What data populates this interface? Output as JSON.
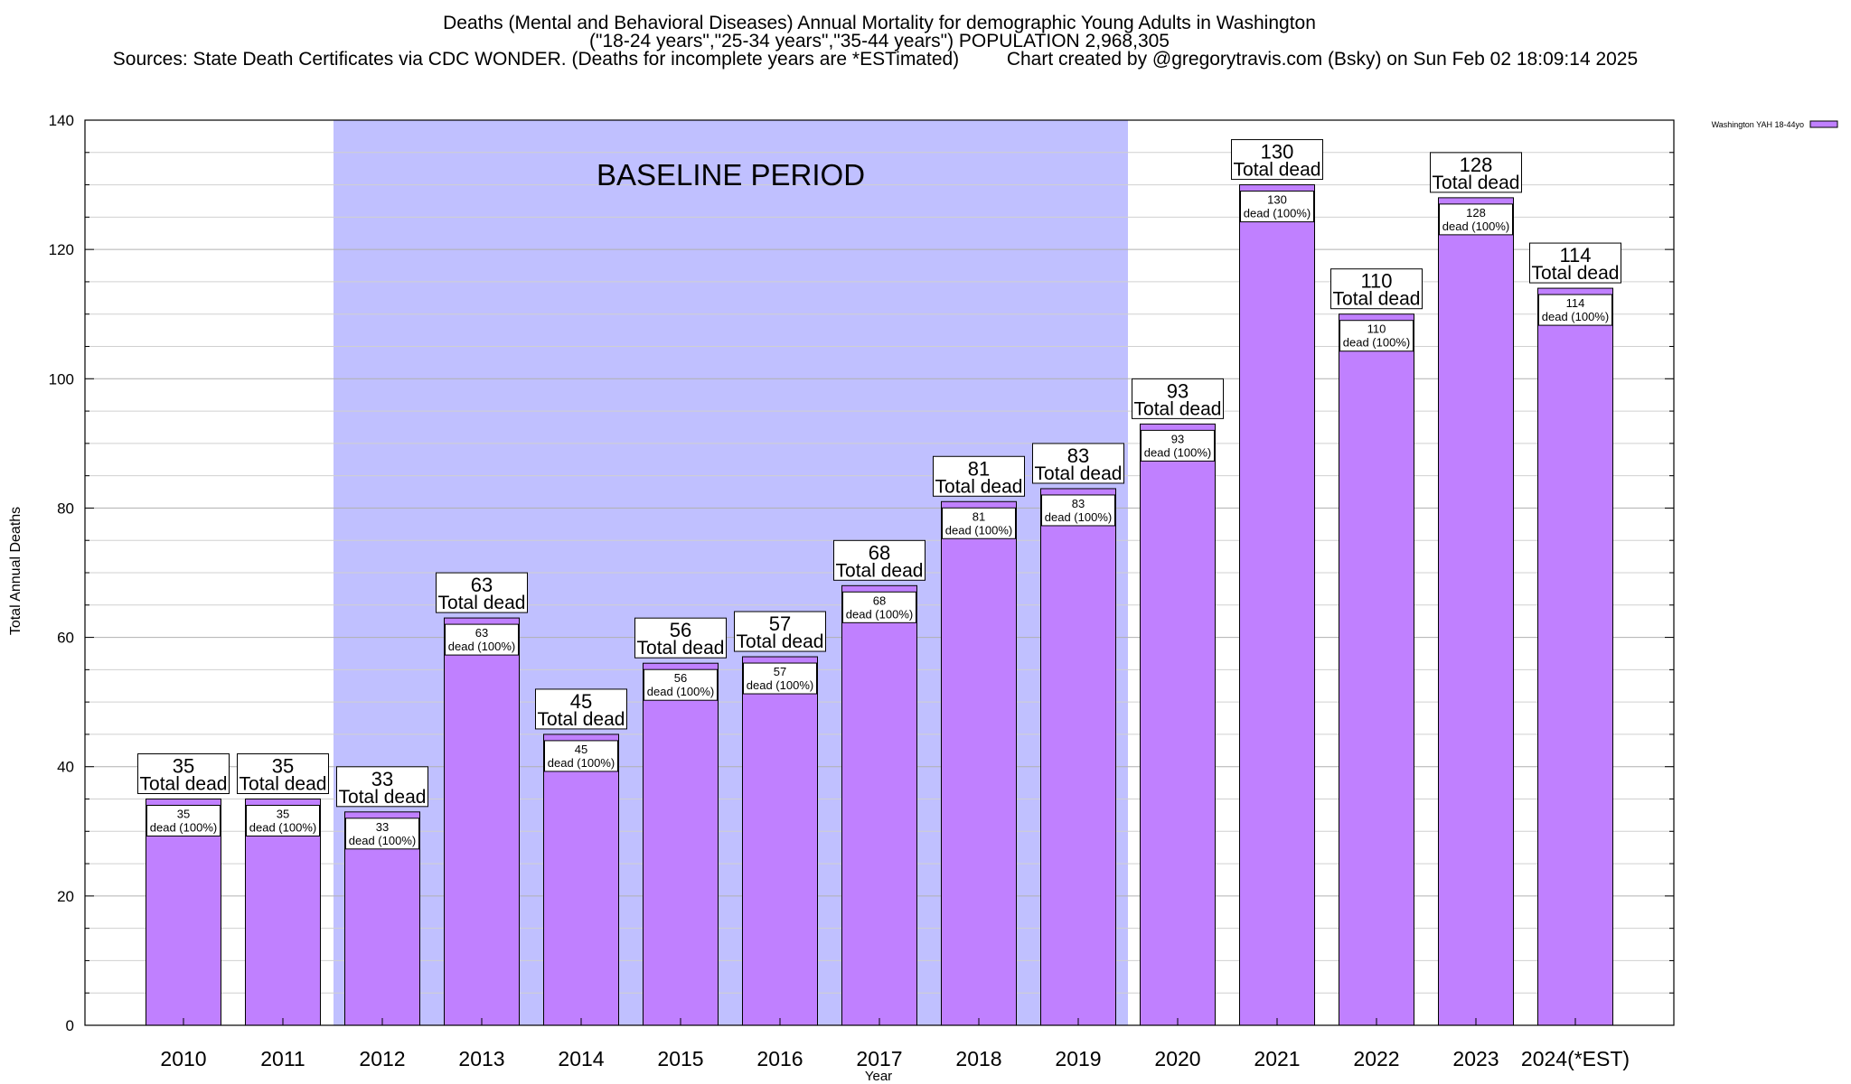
{
  "chart_data": {
    "type": "bar",
    "title": "Deaths (Mental and Behavioral Diseases) Annual Mortality for demographic Young Adults in Washington",
    "subtitle": "(\"18-24 years\",\"25-34 years\",\"35-44 years\") POPULATION 2,968,305",
    "sources": "Sources: State Death Certificates via CDC WONDER. (Deaths for incomplete years are *ESTimated)",
    "credit": "Chart created by @gregorytravis.com (Bsky) on Sun Feb 02 18:09:14 2025",
    "xlabel": "Year",
    "ylabel": "Total Annual Deaths",
    "ylim": [
      0,
      140
    ],
    "yticks": [
      0,
      20,
      40,
      60,
      80,
      100,
      120,
      140
    ],
    "grid": true,
    "legend_position": "top-right",
    "categories": [
      "2010",
      "2011",
      "2012",
      "2013",
      "2014",
      "2015",
      "2016",
      "2017",
      "2018",
      "2019",
      "2020",
      "2021",
      "2022",
      "2023",
      "2024(*EST)"
    ],
    "series": [
      {
        "name": "Washington YAH 18-44yo",
        "color": "#c080ff",
        "values": [
          35,
          35,
          33,
          63,
          45,
          56,
          57,
          68,
          81,
          83,
          93,
          130,
          110,
          128,
          114
        ]
      }
    ],
    "top_label_suffix": "Total dead",
    "inner_label_suffix": "dead (100%)",
    "baseline": {
      "label": "BASELINE PERIOD",
      "start": "2012",
      "end": "2019",
      "color": "#c0c0ff"
    }
  }
}
